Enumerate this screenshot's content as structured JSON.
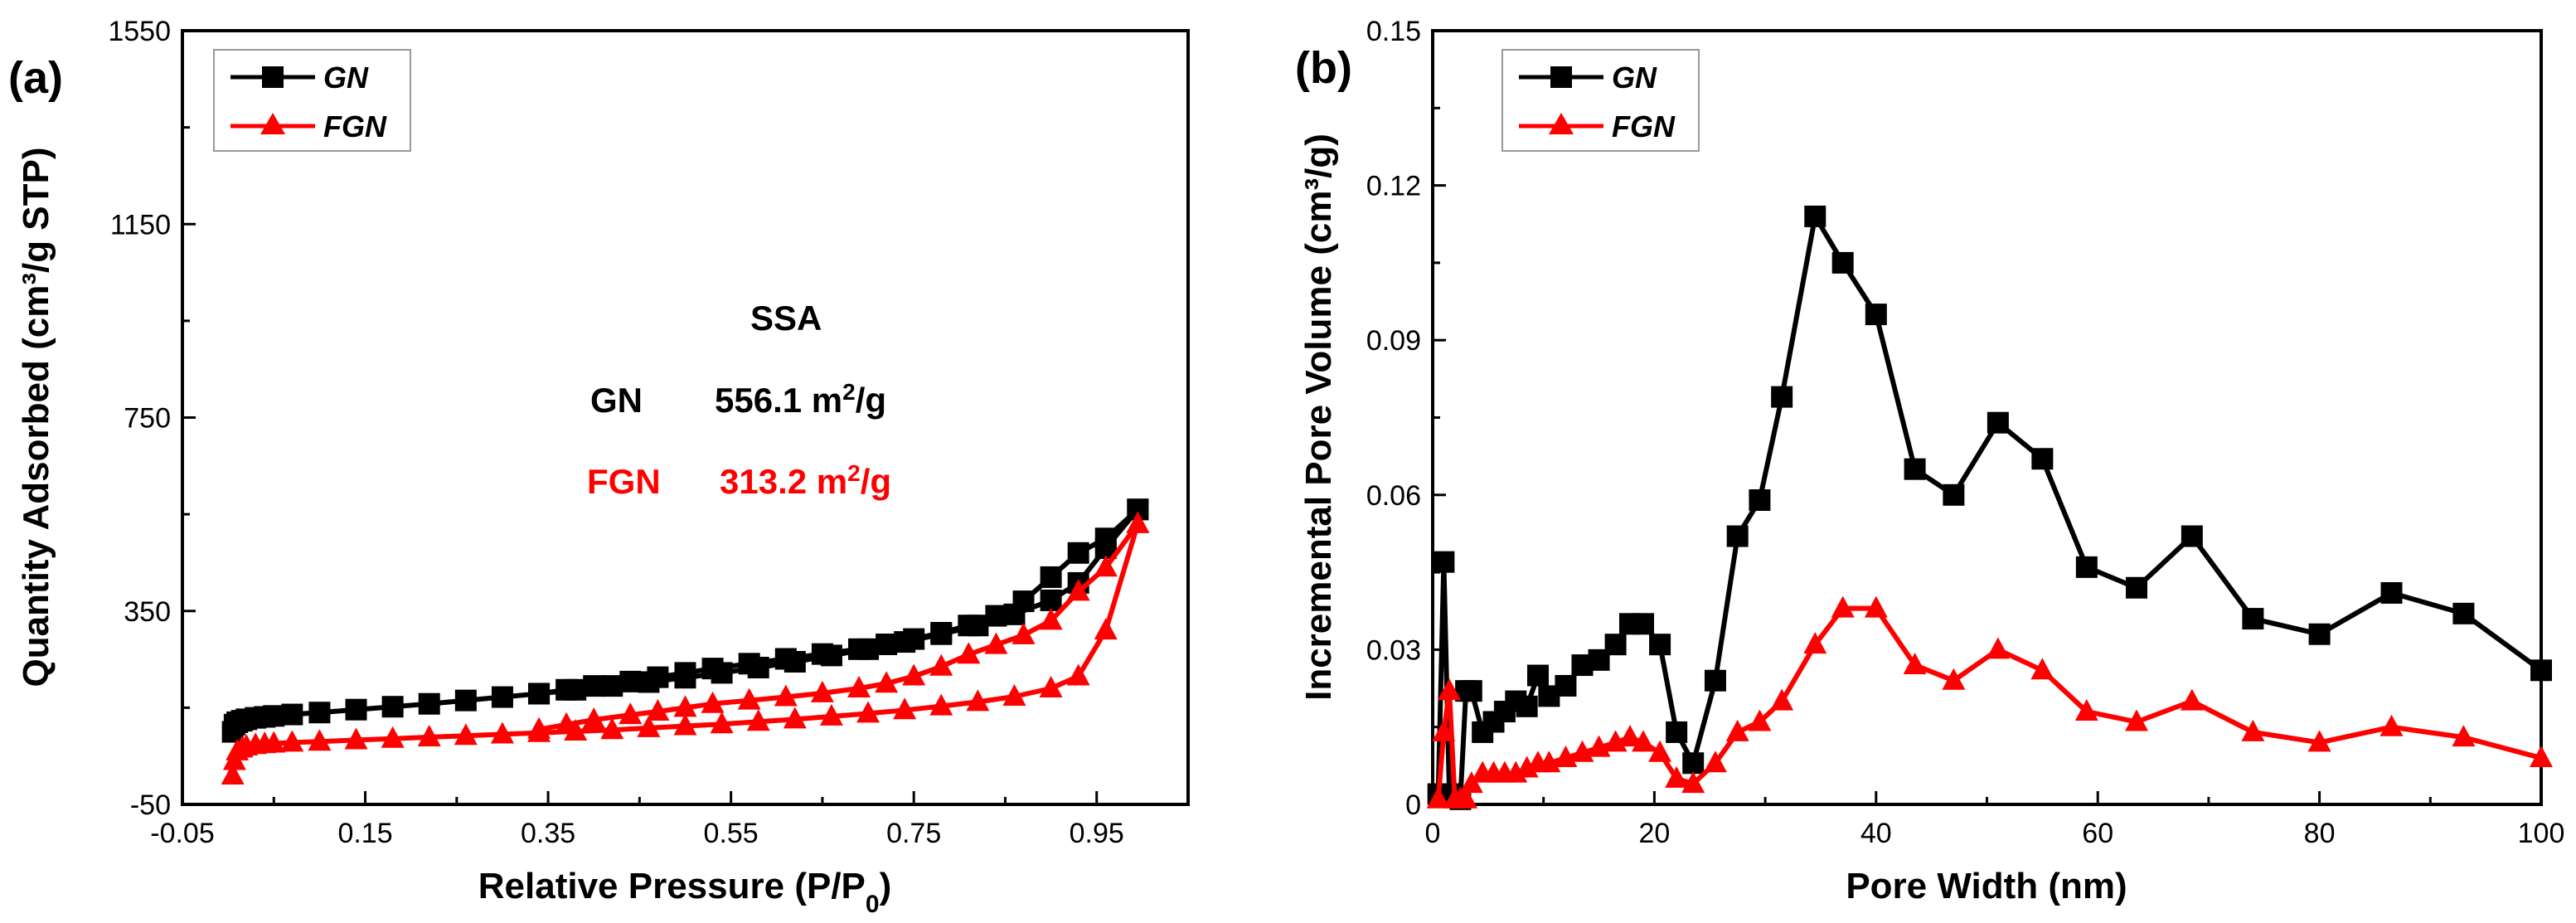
{
  "chart_data": [
    {
      "type": "line",
      "panel_label": "(a)",
      "title": "",
      "xlabel": "Relative Pressure (P/P0)",
      "xlabel_main": "Relative Pressure (P/P",
      "xlabel_sub": "0",
      "xlabel_end": ")",
      "ylabel": "Quantity Adsorbed (cm³/g STP)",
      "xlim": [
        -0.05,
        1.05
      ],
      "ylim": [
        -50,
        1550
      ],
      "xticks": [
        -0.05,
        0.15,
        0.35,
        0.55,
        0.75,
        0.95
      ],
      "xtick_labels": [
        "-0.05",
        "0.15",
        "0.35",
        "0.55",
        "0.75",
        "0.95"
      ],
      "yticks": [
        -50,
        350,
        750,
        1150,
        1550
      ],
      "ytick_labels": [
        "-50",
        "350",
        "750",
        "1150",
        "1550"
      ],
      "legend_position": "top-left",
      "colors": {
        "GN": "#000000",
        "FGN": "#ff0000"
      },
      "series": [
        {
          "name": "GN",
          "marker": "square",
          "color": "#000000",
          "adsorption": {
            "x": [
              0.005,
              0.007,
              0.01,
              0.015,
              0.02,
              0.03,
              0.04,
              0.05,
              0.07,
              0.1,
              0.14,
              0.18,
              0.22,
              0.26,
              0.3,
              0.34,
              0.38,
              0.42,
              0.46,
              0.5,
              0.54,
              0.58,
              0.62,
              0.66,
              0.7,
              0.74,
              0.78,
              0.82,
              0.86,
              0.9,
              0.93,
              0.96,
              0.995
            ],
            "y": [
              100,
              115,
              120,
              123,
              126,
              129,
              131,
              133,
              136,
              140,
              146,
              152,
              158,
              165,
              172,
              179,
              187,
              195,
              203,
              212,
              222,
              233,
              245,
              258,
              271,
              286,
              302,
              320,
              343,
              372,
              408,
              480,
              560
            ]
          },
          "desorption": {
            "x": [
              0.995,
              0.96,
              0.93,
              0.9,
              0.87,
              0.84,
              0.81,
              0.78,
              0.75,
              0.72,
              0.69,
              0.65,
              0.61,
              0.57,
              0.53,
              0.5,
              0.47,
              0.44,
              0.4,
              0.37,
              0.34
            ],
            "y": [
              560,
              500,
              470,
              420,
              370,
              340,
              320,
              305,
              292,
              281,
              271,
              261,
              251,
              241,
              231,
              222,
              213,
              204,
              195,
              187,
              179
            ]
          }
        },
        {
          "name": "FGN",
          "marker": "triangle",
          "color": "#ff0000",
          "adsorption": {
            "x": [
              0.005,
              0.007,
              0.01,
              0.015,
              0.02,
              0.03,
              0.04,
              0.05,
              0.07,
              0.1,
              0.14,
              0.18,
              0.22,
              0.26,
              0.3,
              0.34,
              0.38,
              0.42,
              0.46,
              0.5,
              0.54,
              0.58,
              0.62,
              0.66,
              0.7,
              0.74,
              0.78,
              0.82,
              0.86,
              0.9,
              0.93,
              0.96,
              0.995
            ],
            "y": [
              10,
              40,
              60,
              66,
              70,
              73,
              75,
              76,
              78,
              80,
              83,
              86,
              89,
              92,
              95,
              98,
              101,
              104,
              108,
              112,
              116,
              121,
              126,
              132,
              138,
              145,
              153,
              162,
              173,
              190,
              215,
              310,
              530
            ]
          },
          "desorption": {
            "x": [
              0.995,
              0.96,
              0.93,
              0.9,
              0.87,
              0.84,
              0.81,
              0.78,
              0.75,
              0.72,
              0.69,
              0.65,
              0.61,
              0.57,
              0.53,
              0.5,
              0.47,
              0.44,
              0.4,
              0.37,
              0.34
            ],
            "y": [
              530,
              440,
              390,
              330,
              300,
              280,
              260,
              235,
              215,
              200,
              190,
              180,
              172,
              165,
              158,
              150,
              142,
              135,
              125,
              115,
              105
            ]
          }
        }
      ],
      "annotations": {
        "ssa_title": "SSA",
        "gn_label": "GN",
        "gn_value": "556.1 m",
        "gn_unit_sup": "2",
        "gn_unit_end": "/g",
        "fgn_label": "FGN",
        "fgn_value": "313.2 m",
        "fgn_unit_sup": "2",
        "fgn_unit_end": "/g"
      }
    },
    {
      "type": "line",
      "panel_label": "(b)",
      "title": "",
      "xlabel": "Pore Width (nm)",
      "ylabel": "Incremental Pore Volume (cm³/g)",
      "xlim": [
        0,
        100
      ],
      "ylim": [
        0,
        0.15
      ],
      "xticks": [
        0,
        20,
        40,
        60,
        80,
        100
      ],
      "xtick_labels": [
        "0",
        "20",
        "40",
        "60",
        "80",
        "100"
      ],
      "yticks": [
        0,
        0.03,
        0.06,
        0.09,
        0.12,
        0.15
      ],
      "ytick_labels": [
        "0",
        "0.03",
        "0.06",
        "0.09",
        "0.12",
        "0.15"
      ],
      "legend_position": "top-left",
      "series": [
        {
          "name": "GN",
          "marker": "square",
          "color": "#000000",
          "x": [
            0.5,
            1.0,
            1.5,
            2.5,
            3.0,
            3.5,
            4.5,
            5.5,
            6.5,
            7.5,
            8.5,
            9.5,
            10.5,
            12.0,
            13.5,
            15.0,
            16.5,
            17.8,
            19.0,
            20.5,
            22.0,
            23.5,
            25.5,
            27.5,
            29.5,
            31.5,
            34.5,
            37.0,
            40.0,
            43.5,
            47.0,
            51.0,
            55.0,
            59.0,
            63.5,
            68.5,
            74.0,
            80.0,
            86.5,
            93.0,
            100.0
          ],
          "y": [
            0.002,
            0.047,
            0.002,
            0.001,
            0.022,
            0.022,
            0.014,
            0.016,
            0.018,
            0.02,
            0.019,
            0.025,
            0.021,
            0.023,
            0.027,
            0.028,
            0.031,
            0.035,
            0.035,
            0.031,
            0.014,
            0.008,
            0.024,
            0.052,
            0.059,
            0.079,
            0.114,
            0.105,
            0.095,
            0.065,
            0.06,
            0.074,
            0.067,
            0.046,
            0.042,
            0.052,
            0.036,
            0.033,
            0.041,
            0.037,
            0.026
          ]
        },
        {
          "name": "FGN",
          "marker": "triangle",
          "color": "#ff0000",
          "x": [
            0.5,
            1.0,
            1.5,
            2.0,
            2.5,
            3.0,
            3.5,
            4.5,
            5.5,
            6.5,
            7.5,
            8.5,
            9.5,
            10.5,
            12.0,
            13.5,
            15.0,
            16.5,
            17.8,
            19.0,
            20.5,
            22.0,
            23.5,
            25.5,
            27.5,
            29.5,
            31.5,
            34.5,
            37.0,
            40.0,
            43.5,
            47.0,
            51.0,
            55.0,
            59.0,
            63.5,
            68.5,
            74.0,
            80.0,
            86.5,
            93.0,
            100.0
          ],
          "y": [
            0.001,
            0.014,
            0.022,
            0.001,
            0.001,
            0.001,
            0.004,
            0.006,
            0.006,
            0.006,
            0.006,
            0.007,
            0.008,
            0.008,
            0.009,
            0.01,
            0.011,
            0.012,
            0.013,
            0.012,
            0.01,
            0.005,
            0.004,
            0.008,
            0.014,
            0.016,
            0.02,
            0.031,
            0.038,
            0.038,
            0.027,
            0.024,
            0.03,
            0.026,
            0.018,
            0.016,
            0.02,
            0.014,
            0.012,
            0.015,
            0.013,
            0.009
          ]
        }
      ]
    }
  ]
}
